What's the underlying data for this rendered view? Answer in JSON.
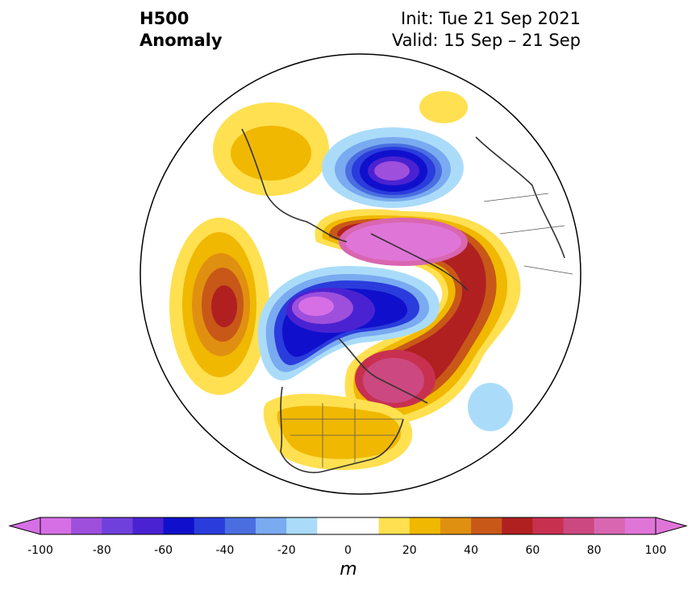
{
  "header": {
    "title_line1": "H500",
    "title_line2": "Anomaly",
    "init": "Init: Tue 21 Sep 2021",
    "valid": "Valid: 15 Sep – 21 Sep"
  },
  "colorbar": {
    "unit": "m",
    "ticks": [
      "-100",
      "-80",
      "-60",
      "-40",
      "-20",
      "0",
      "20",
      "40",
      "60",
      "80",
      "100"
    ],
    "levels": [
      -100,
      -90,
      -80,
      -70,
      -60,
      -50,
      -40,
      -30,
      -20,
      -10,
      10,
      20,
      30,
      40,
      50,
      60,
      70,
      80,
      90,
      100
    ],
    "colors": [
      "#d66fe6",
      "#9e4fdc",
      "#7040dc",
      "#4a22d2",
      "#1010cc",
      "#2a3cdc",
      "#4a6ee0",
      "#7aaaf0",
      "#aadcfa",
      "#ffffff",
      "#ffe050",
      "#f0b800",
      "#e09010",
      "#c85818",
      "#b02020",
      "#c83050",
      "#cc4880",
      "#d966b0",
      "#e075d8"
    ],
    "extend": "both"
  },
  "map": {
    "projection": "north polar stereographic",
    "features": [
      "coastlines",
      "country borders",
      "US state borders"
    ]
  }
}
